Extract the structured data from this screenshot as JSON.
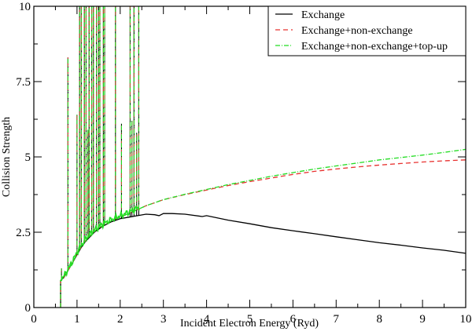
{
  "chart_data": {
    "type": "line",
    "title": "",
    "xlabel": "Incident Electron Energy (Ryd)",
    "ylabel": "Collision Strength",
    "xlim": [
      0,
      10
    ],
    "ylim": [
      0,
      10
    ],
    "x_ticks": [
      "0",
      "1",
      "2",
      "3",
      "4",
      "5",
      "6",
      "7",
      "8",
      "9",
      "10"
    ],
    "y_ticks": [
      "0",
      "2.5",
      "5",
      "7.5",
      "10"
    ],
    "grid": false,
    "legend_position": "upper right",
    "series": [
      {
        "name": "Exchange",
        "color": "#000000",
        "style": "solid",
        "x": [
          0.62,
          0.7,
          0.8,
          0.9,
          1.0,
          1.1,
          1.2,
          1.3,
          1.4,
          1.5,
          1.6,
          1.8,
          2.0,
          2.2,
          2.4,
          2.6,
          2.8,
          2.9,
          3.0,
          3.2,
          3.5,
          3.9,
          4.0,
          4.5,
          5.0,
          5.5,
          6.0,
          6.5,
          7.0,
          7.5,
          8.0,
          8.5,
          9.0,
          9.5,
          10.0
        ],
        "y": [
          0.9,
          1.0,
          1.25,
          1.5,
          1.75,
          2.0,
          2.2,
          2.35,
          2.5,
          2.6,
          2.7,
          2.85,
          2.95,
          3.0,
          3.05,
          3.1,
          3.08,
          3.05,
          3.12,
          3.12,
          3.1,
          3.02,
          3.05,
          2.9,
          2.78,
          2.65,
          2.55,
          2.45,
          2.35,
          2.25,
          2.15,
          2.07,
          1.98,
          1.9,
          1.8
        ]
      },
      {
        "name": "Exchange+non-exchange",
        "color": "#e8312f",
        "style": "dashed",
        "x": [
          0.62,
          0.7,
          0.8,
          0.9,
          1.0,
          1.1,
          1.2,
          1.3,
          1.4,
          1.5,
          1.6,
          1.8,
          2.0,
          2.2,
          2.4,
          2.6,
          2.8,
          3.0,
          3.5,
          4.0,
          4.5,
          5.0,
          5.5,
          6.0,
          6.5,
          7.0,
          7.5,
          8.0,
          8.5,
          9.0,
          9.5,
          10.0
        ],
        "y": [
          0.9,
          1.0,
          1.25,
          1.5,
          1.78,
          2.02,
          2.22,
          2.38,
          2.52,
          2.63,
          2.72,
          2.88,
          3.0,
          3.12,
          3.25,
          3.38,
          3.48,
          3.58,
          3.75,
          3.9,
          4.05,
          4.18,
          4.3,
          4.42,
          4.52,
          4.6,
          4.67,
          4.73,
          4.78,
          4.83,
          4.87,
          4.9
        ]
      },
      {
        "name": "Exchange+non-exchange+top-up",
        "color": "#22dd22",
        "style": "dash-dot",
        "x": [
          0.62,
          0.7,
          0.8,
          0.9,
          1.0,
          1.1,
          1.2,
          1.3,
          1.4,
          1.5,
          1.6,
          1.8,
          2.0,
          2.2,
          2.4,
          2.6,
          2.8,
          3.0,
          3.5,
          4.0,
          4.5,
          5.0,
          5.5,
          6.0,
          6.5,
          7.0,
          7.5,
          8.0,
          8.5,
          9.0,
          9.5,
          10.0
        ],
        "y": [
          0.9,
          1.0,
          1.25,
          1.5,
          1.78,
          2.02,
          2.22,
          2.38,
          2.52,
          2.63,
          2.72,
          2.88,
          3.0,
          3.12,
          3.25,
          3.38,
          3.48,
          3.58,
          3.76,
          3.92,
          4.08,
          4.22,
          4.36,
          4.48,
          4.6,
          4.7,
          4.8,
          4.9,
          4.98,
          5.06,
          5.15,
          5.25
        ]
      }
    ],
    "resonance_spikes": [
      {
        "x": 0.64,
        "peak": 1.3
      },
      {
        "x": 0.72,
        "peak": 1.2
      },
      {
        "x": 0.79,
        "peak": 8.3
      },
      {
        "x": 0.92,
        "peak": 1.7
      },
      {
        "x": 1.0,
        "peak": 6.4
      },
      {
        "x": 1.06,
        "peak": 10
      },
      {
        "x": 1.1,
        "peak": 10
      },
      {
        "x": 1.17,
        "peak": 10
      },
      {
        "x": 1.21,
        "peak": 10
      },
      {
        "x": 1.25,
        "peak": 5.9
      },
      {
        "x": 1.28,
        "peak": 10
      },
      {
        "x": 1.34,
        "peak": 10
      },
      {
        "x": 1.38,
        "peak": 10
      },
      {
        "x": 1.45,
        "peak": 10
      },
      {
        "x": 1.5,
        "peak": 10
      },
      {
        "x": 1.53,
        "peak": 10
      },
      {
        "x": 1.61,
        "peak": 10
      },
      {
        "x": 1.64,
        "peak": 10
      },
      {
        "x": 1.89,
        "peak": 10
      },
      {
        "x": 2.03,
        "peak": 6.1
      },
      {
        "x": 2.23,
        "peak": 10
      },
      {
        "x": 2.27,
        "peak": 6.2
      },
      {
        "x": 2.32,
        "peak": 10
      },
      {
        "x": 2.38,
        "peak": 5.8
      },
      {
        "x": 2.43,
        "peak": 10
      }
    ]
  },
  "legend": {
    "items": [
      {
        "label": "Exchange",
        "color": "#000000",
        "dash": ""
      },
      {
        "label": "Exchange+non-exchange",
        "color": "#e8312f",
        "dash": "6,4"
      },
      {
        "label": "Exchange+non-exchange+top-up",
        "color": "#22dd22",
        "dash": "6,2,1,2"
      }
    ]
  }
}
